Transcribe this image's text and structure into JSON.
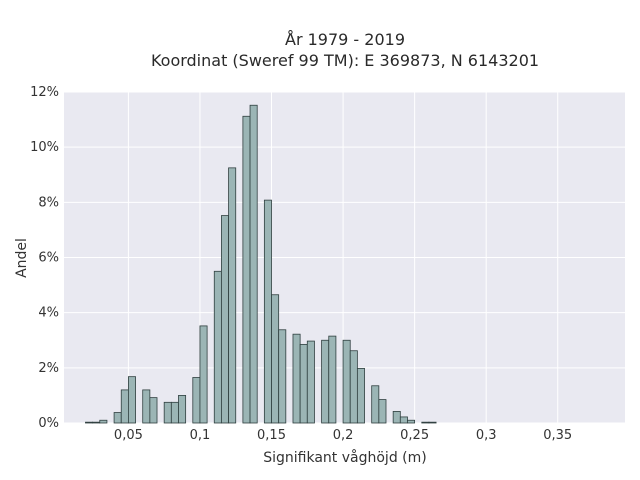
{
  "chart_data": {
    "type": "bar",
    "title": "År 1979 - 2019",
    "subtitle": "Koordinat (Sweref 99 TM): E 369873, N 6143201",
    "xlabel": "Signifikant våghöjd (m)",
    "ylabel": "Andel",
    "xlim": [
      0.005,
      0.397
    ],
    "ylim": [
      0,
      12
    ],
    "bin_width": 0.005,
    "x_ticks": [
      {
        "value": 0.05,
        "label": "0,05"
      },
      {
        "value": 0.1,
        "label": "0,1"
      },
      {
        "value": 0.15,
        "label": "0,15"
      },
      {
        "value": 0.2,
        "label": "0,2"
      },
      {
        "value": 0.25,
        "label": "0,25"
      },
      {
        "value": 0.3,
        "label": "0,3"
      },
      {
        "value": 0.35,
        "label": "0,35"
      }
    ],
    "y_ticks": [
      {
        "value": 0,
        "label": "0%"
      },
      {
        "value": 2,
        "label": "2%"
      },
      {
        "value": 4,
        "label": "4%"
      },
      {
        "value": 6,
        "label": "6%"
      },
      {
        "value": 8,
        "label": "8%"
      },
      {
        "value": 10,
        "label": "10%"
      },
      {
        "value": 12,
        "label": "12%"
      }
    ],
    "grid": true,
    "bars": [
      {
        "x": 0.02,
        "y": 0.03
      },
      {
        "x": 0.025,
        "y": 0.03
      },
      {
        "x": 0.03,
        "y": 0.1
      },
      {
        "x": 0.04,
        "y": 0.38
      },
      {
        "x": 0.045,
        "y": 1.2
      },
      {
        "x": 0.05,
        "y": 1.68
      },
      {
        "x": 0.06,
        "y": 1.2
      },
      {
        "x": 0.065,
        "y": 0.92
      },
      {
        "x": 0.075,
        "y": 0.75
      },
      {
        "x": 0.08,
        "y": 0.75
      },
      {
        "x": 0.085,
        "y": 1.0
      },
      {
        "x": 0.095,
        "y": 1.65
      },
      {
        "x": 0.1,
        "y": 3.52
      },
      {
        "x": 0.11,
        "y": 5.5
      },
      {
        "x": 0.115,
        "y": 7.52
      },
      {
        "x": 0.12,
        "y": 9.25
      },
      {
        "x": 0.13,
        "y": 11.12
      },
      {
        "x": 0.135,
        "y": 11.52
      },
      {
        "x": 0.145,
        "y": 8.08
      },
      {
        "x": 0.15,
        "y": 4.65
      },
      {
        "x": 0.155,
        "y": 3.38
      },
      {
        "x": 0.165,
        "y": 3.22
      },
      {
        "x": 0.17,
        "y": 2.85
      },
      {
        "x": 0.175,
        "y": 2.97
      },
      {
        "x": 0.185,
        "y": 3.0
      },
      {
        "x": 0.19,
        "y": 3.15
      },
      {
        "x": 0.2,
        "y": 3.0
      },
      {
        "x": 0.205,
        "y": 2.62
      },
      {
        "x": 0.21,
        "y": 1.98
      },
      {
        "x": 0.22,
        "y": 1.35
      },
      {
        "x": 0.225,
        "y": 0.85
      },
      {
        "x": 0.235,
        "y": 0.42
      },
      {
        "x": 0.24,
        "y": 0.22
      },
      {
        "x": 0.245,
        "y": 0.1
      },
      {
        "x": 0.255,
        "y": 0.03
      },
      {
        "x": 0.26,
        "y": 0.03
      }
    ],
    "bar_color": "#9bb5b5",
    "bar_edge_color": "#2f3f3f",
    "plot_background": "#e9e9f1",
    "grid_color": "#ffffff"
  }
}
